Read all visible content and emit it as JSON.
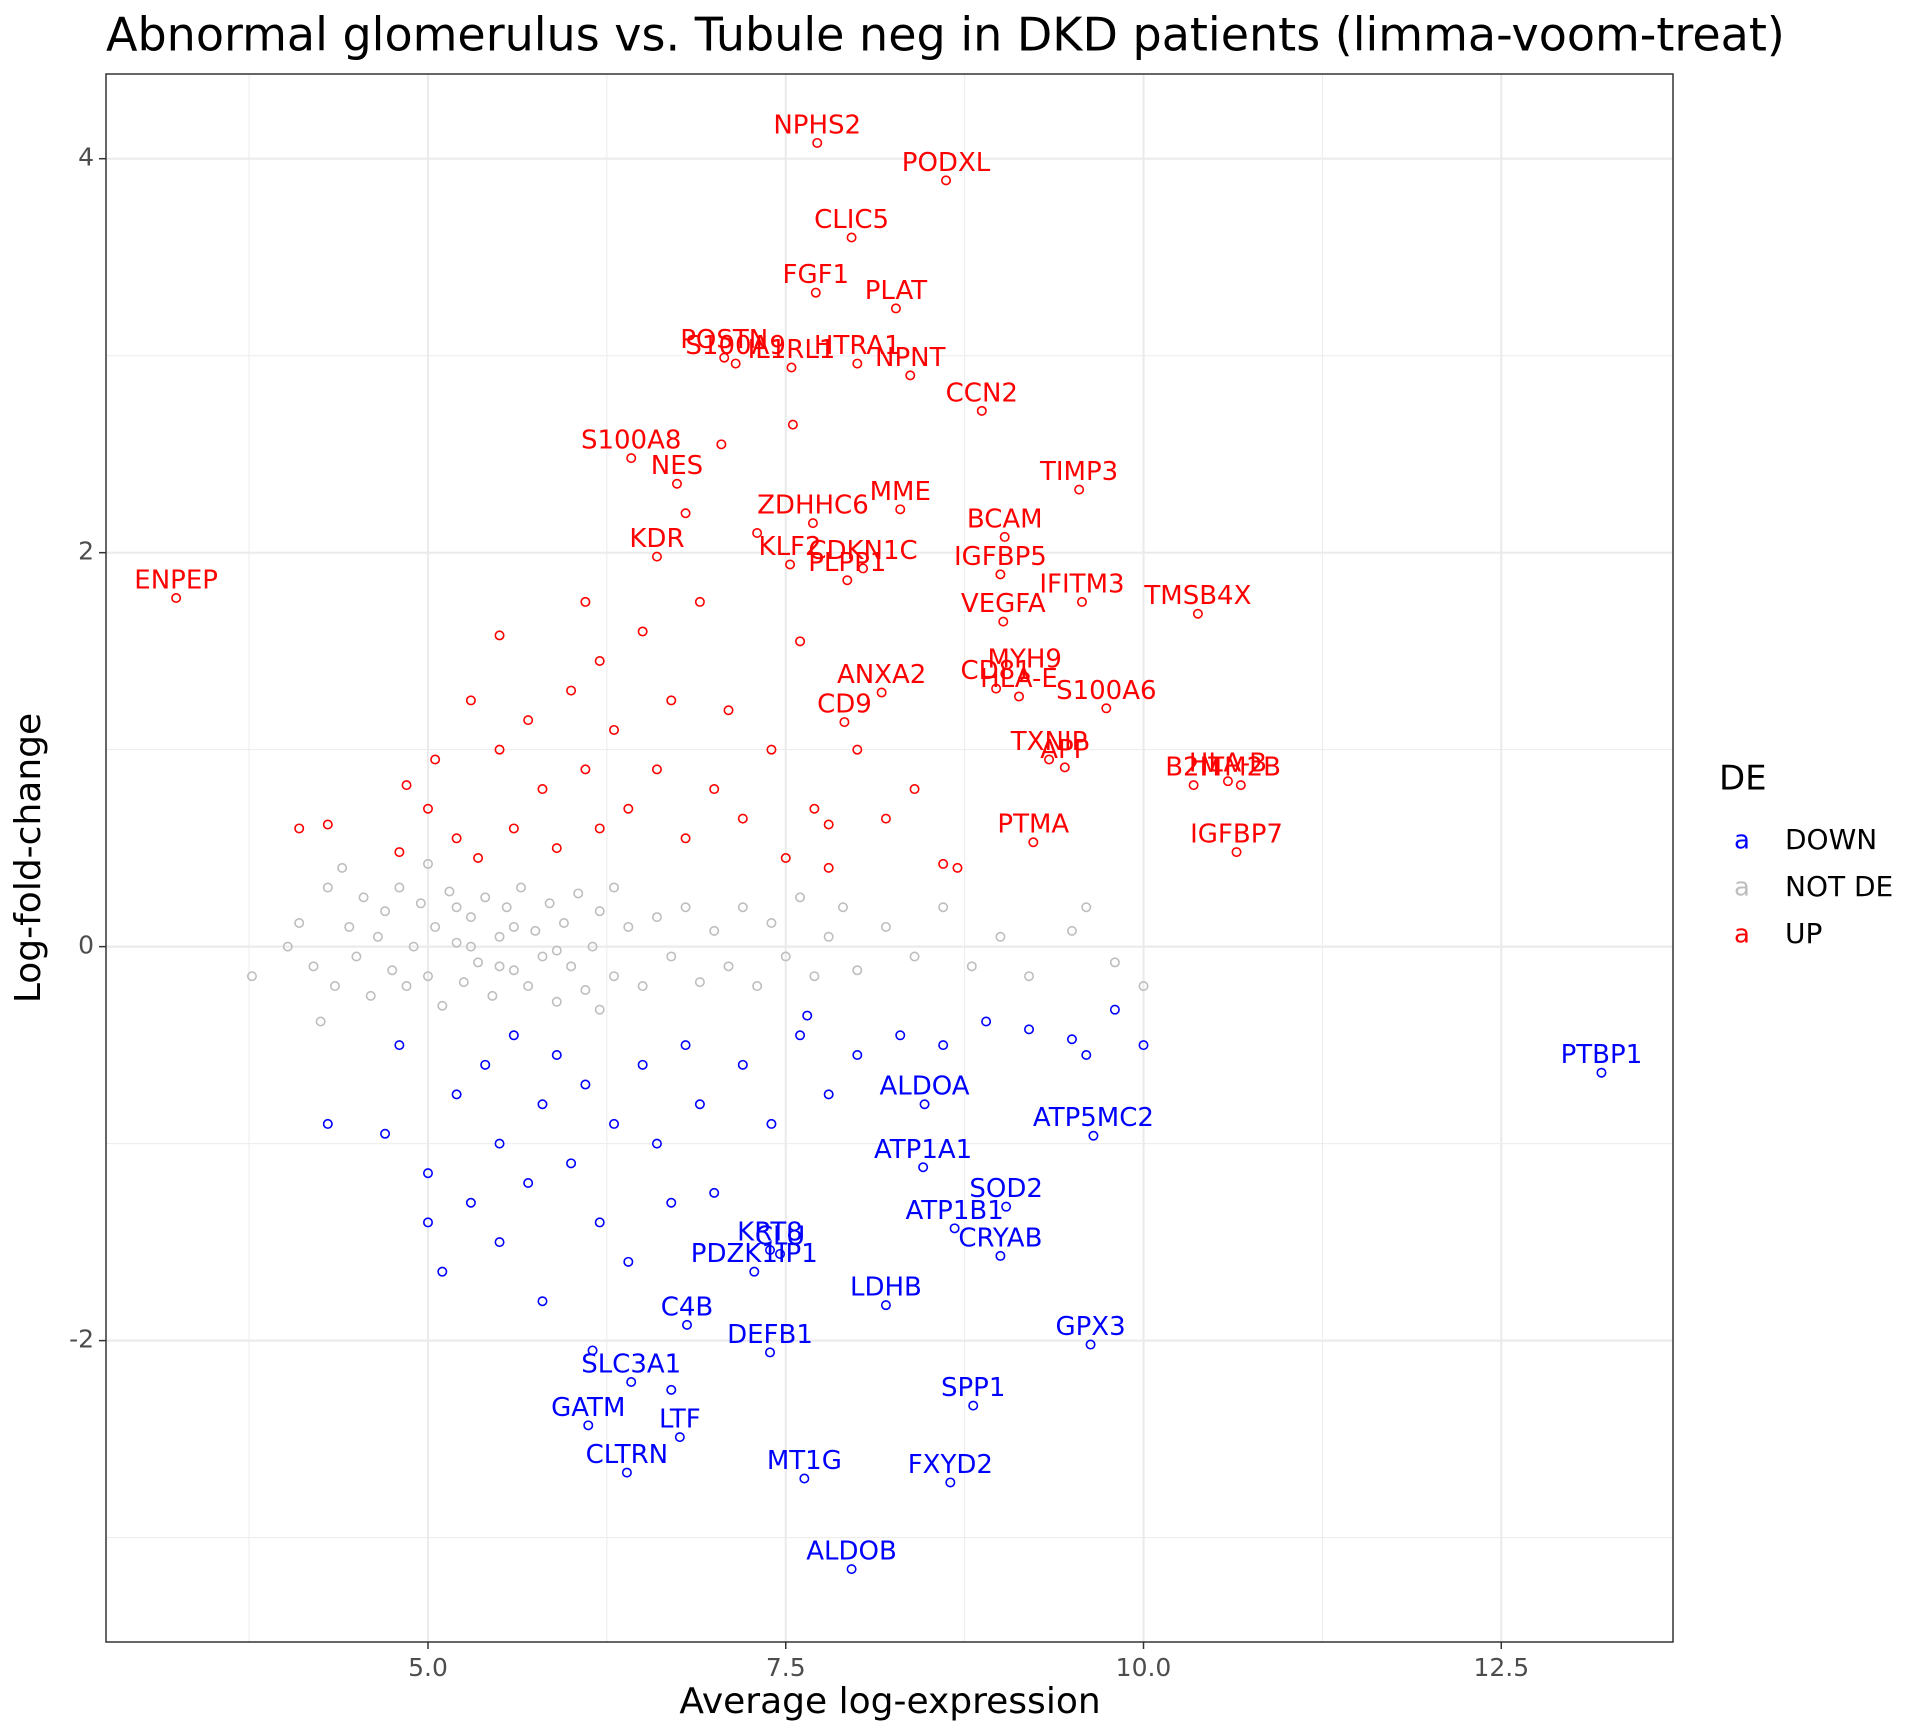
{
  "chart_data": {
    "type": "scatter",
    "title": "Abnormal glomerulus vs. Tubule neg in DKD patients (limma-voom-treat)",
    "x_label": "Average log-expression",
    "y_label": "Log-fold-change",
    "legend_title": "DE",
    "legend_glyph": "a",
    "legend_position": "right",
    "grid": true,
    "xlim": [
      2.75,
      13.7
    ],
    "ylim": [
      -3.53,
      4.43
    ],
    "xticks": [
      {
        "value": 5,
        "label": "5.0"
      },
      {
        "value": 7.5,
        "label": "7.5"
      },
      {
        "value": 10,
        "label": "10.0"
      },
      {
        "value": 12.5,
        "label": "12.5"
      }
    ],
    "yticks": [
      -2,
      0,
      2,
      4
    ],
    "x_minor": [
      3.75,
      6.25,
      8.75,
      11.25
    ],
    "y_minor": [
      -3,
      -1,
      1,
      3
    ],
    "series": [
      {
        "name": "DOWN",
        "color": "#0000ff",
        "x": [
          13.2,
          8.47,
          8.46,
          9.65,
          9.04,
          8.68,
          9.0,
          7.39,
          7.46,
          7.28,
          6.81,
          8.2,
          9.63,
          7.39,
          8.81,
          6.12,
          6.76,
          6.39,
          8.65,
          7.63,
          6.42,
          7.96,
          4.3,
          4.7,
          4.8,
          5.0,
          5.0,
          5.1,
          5.2,
          5.3,
          5.4,
          5.5,
          5.5,
          5.6,
          5.7,
          5.8,
          5.8,
          5.9,
          6.0,
          6.1,
          6.2,
          6.3,
          6.4,
          6.5,
          6.6,
          6.7,
          6.8,
          6.9,
          7.0,
          7.2,
          7.4,
          7.6,
          7.8,
          8.0,
          8.3,
          8.6,
          8.9,
          9.2,
          9.5,
          9.8,
          10.0,
          9.6,
          6.15,
          6.7,
          7.65
        ],
        "values": [
          -0.64,
          -0.8,
          -1.12,
          -0.96,
          -1.32,
          -1.43,
          -1.57,
          -1.54,
          -1.56,
          -1.65,
          -1.92,
          -1.82,
          -2.02,
          -2.06,
          -2.33,
          -2.43,
          -2.49,
          -2.67,
          -2.72,
          -2.7,
          -2.21,
          -3.16,
          -0.9,
          -0.95,
          -0.5,
          -1.15,
          -1.4,
          -1.65,
          -0.75,
          -1.3,
          -0.6,
          -1.0,
          -1.5,
          -0.45,
          -1.2,
          -0.8,
          -1.8,
          -0.55,
          -1.1,
          -0.7,
          -1.4,
          -0.9,
          -1.6,
          -0.6,
          -1.0,
          -1.3,
          -0.5,
          -0.8,
          -1.25,
          -0.6,
          -0.9,
          -0.45,
          -0.75,
          -0.55,
          -0.45,
          -0.5,
          -0.38,
          -0.42,
          -0.47,
          -0.32,
          -0.5,
          -0.55,
          -2.05,
          -2.25,
          -0.35
        ],
        "labels": [
          "PTBP1",
          "ALDOA",
          "ATP1A1",
          "ATP5MC2",
          "SOD2",
          "ATP1B1",
          "CRYAB",
          "KRT8",
          "CLU",
          "PDZK1IP1",
          "C4B",
          "LDHB",
          "GPX3",
          "DEFB1",
          "SPP1",
          "GATM",
          "LTF",
          "CLTRN",
          "FXYD2",
          "MT1G",
          "SLC3A1",
          "ALDOB",
          null,
          null,
          null,
          null,
          null,
          null,
          null,
          null,
          null,
          null,
          null,
          null,
          null,
          null,
          null,
          null,
          null,
          null,
          null,
          null,
          null,
          null,
          null,
          null,
          null,
          null,
          null,
          null,
          null,
          null,
          null,
          null,
          null,
          null,
          null,
          null,
          null,
          null,
          null,
          null,
          null,
          null,
          null
        ]
      },
      {
        "name": "NOT DE",
        "color": "#bebebe",
        "x": [
          3.77,
          4.02,
          4.1,
          4.2,
          4.3,
          4.35,
          4.45,
          4.5,
          4.55,
          4.6,
          4.65,
          4.7,
          4.75,
          4.8,
          4.85,
          4.9,
          4.95,
          5.0,
          5.05,
          5.1,
          5.15,
          5.2,
          5.25,
          5.3,
          5.35,
          5.4,
          5.45,
          5.5,
          5.55,
          5.6,
          5.65,
          5.7,
          5.75,
          5.8,
          5.85,
          5.9,
          5.95,
          6.0,
          6.05,
          6.1,
          6.15,
          6.2,
          6.3,
          6.4,
          6.5,
          6.6,
          6.7,
          6.8,
          6.9,
          7.0,
          7.1,
          7.2,
          7.3,
          7.4,
          7.5,
          7.6,
          7.7,
          7.8,
          7.9,
          8.0,
          8.2,
          8.4,
          8.6,
          8.8,
          9.0,
          9.2,
          9.5,
          9.6,
          9.8,
          10.0,
          4.4,
          4.25,
          5.0,
          6.2,
          5.3,
          5.6,
          5.9,
          6.3,
          5.5,
          5.2
        ],
        "values": [
          -0.15,
          0.0,
          0.12,
          -0.1,
          0.3,
          -0.2,
          0.1,
          -0.05,
          0.25,
          -0.25,
          0.05,
          0.18,
          -0.12,
          0.3,
          -0.2,
          0.0,
          0.22,
          -0.15,
          0.1,
          -0.3,
          0.28,
          0.02,
          -0.18,
          0.15,
          -0.08,
          0.25,
          -0.25,
          0.05,
          0.2,
          -0.12,
          0.3,
          -0.2,
          0.08,
          -0.05,
          0.22,
          -0.28,
          0.12,
          -0.1,
          0.27,
          -0.22,
          0.0,
          0.18,
          -0.15,
          0.1,
          -0.2,
          0.15,
          -0.05,
          0.2,
          -0.18,
          0.08,
          -0.1,
          0.2,
          -0.2,
          0.12,
          -0.05,
          0.25,
          -0.15,
          0.05,
          0.2,
          -0.12,
          0.1,
          -0.05,
          0.2,
          -0.1,
          0.05,
          -0.15,
          0.08,
          0.2,
          -0.08,
          -0.2,
          0.4,
          -0.38,
          0.42,
          -0.32,
          0.0,
          0.1,
          -0.02,
          0.3,
          -0.1,
          0.2
        ]
      },
      {
        "name": "UP",
        "color": "#ff0000",
        "x": [
          7.72,
          8.62,
          7.96,
          6.42,
          7.71,
          8.27,
          7.07,
          7.15,
          7.54,
          8.0,
          8.37,
          8.87,
          6.6,
          6.74,
          7.53,
          8.3,
          7.69,
          9.55,
          9.03,
          8.04,
          9.0,
          9.57,
          3.24,
          7.93,
          9.02,
          10.38,
          8.97,
          9.17,
          8.17,
          9.13,
          9.74,
          7.91,
          9.34,
          9.45,
          10.59,
          10.35,
          10.68,
          9.23,
          10.65,
          4.1,
          4.3,
          4.8,
          4.85,
          5.0,
          5.05,
          5.2,
          5.3,
          5.35,
          5.5,
          5.5,
          5.6,
          5.7,
          5.8,
          5.9,
          6.0,
          6.1,
          6.2,
          6.2,
          6.3,
          6.4,
          6.5,
          6.6,
          6.7,
          6.8,
          6.9,
          7.0,
          7.1,
          7.2,
          7.3,
          7.4,
          7.5,
          7.6,
          7.7,
          7.8,
          8.0,
          8.2,
          8.4,
          8.6,
          6.1,
          6.8,
          7.05,
          7.55,
          7.8,
          8.7
        ],
        "values": [
          4.08,
          3.89,
          3.6,
          2.48,
          3.32,
          3.24,
          2.99,
          2.96,
          2.94,
          2.96,
          2.9,
          2.72,
          1.98,
          2.35,
          1.94,
          2.22,
          2.15,
          2.32,
          2.08,
          1.92,
          1.89,
          1.75,
          1.77,
          1.86,
          1.65,
          1.69,
          1.31,
          1.37,
          1.29,
          1.27,
          1.21,
          1.14,
          0.95,
          0.91,
          0.84,
          0.82,
          0.82,
          0.53,
          0.48,
          0.6,
          0.62,
          0.48,
          0.82,
          0.7,
          0.95,
          0.55,
          1.25,
          0.45,
          1.0,
          1.58,
          0.6,
          1.15,
          0.8,
          0.5,
          1.3,
          0.9,
          1.45,
          0.6,
          1.1,
          0.7,
          1.6,
          0.9,
          1.25,
          0.55,
          1.75,
          0.8,
          1.2,
          0.65,
          2.1,
          1.0,
          0.45,
          1.55,
          0.7,
          0.4,
          1.0,
          0.65,
          0.8,
          0.42,
          1.75,
          2.2,
          2.55,
          2.65,
          0.62,
          0.4
        ],
        "labels": [
          "NPHS2",
          "PODXL",
          "CLIC5",
          "S100A8",
          "FGF1",
          "PLAT",
          "POSTN",
          "S100A9",
          "IL1RL1",
          "HTRA1",
          "NPNT",
          "CCN2",
          "KDR",
          "NES",
          "KLF2",
          "MME",
          "ZDHHC6",
          "TIMP3",
          "BCAM",
          "CDKN1C",
          "IGFBP5",
          "IFITM3",
          "ENPEP",
          "PLPP1",
          "VEGFA",
          "TMSB4X",
          "CD81",
          "MYH9",
          "ANXA2",
          "HLA-E",
          "S100A6",
          "CD9",
          "TXNIP",
          "APP",
          "HLA-B",
          "B2M",
          "ITM2B",
          "PTMA",
          "IGFBP7",
          null,
          null,
          null,
          null,
          null,
          null,
          null,
          null,
          null,
          null,
          null,
          null,
          null,
          null,
          null,
          null,
          null,
          null,
          null,
          null,
          null,
          null,
          null,
          null,
          null,
          null,
          null,
          null,
          null,
          null,
          null,
          null,
          null,
          null,
          null,
          null,
          null,
          null,
          null,
          null,
          null,
          null,
          null,
          null,
          null
        ]
      }
    ]
  }
}
